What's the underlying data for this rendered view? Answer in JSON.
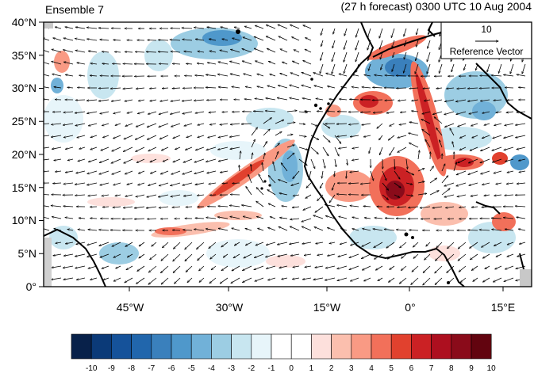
{
  "header": {
    "left_title": "Ensemble 7",
    "right_title": "(27 h forecast) 0300 UTC 10 Aug 2004"
  },
  "map": {
    "lat_ticks": [
      "40°N",
      "35°N",
      "30°N",
      "25°N",
      "20°N",
      "15°N",
      "10°N",
      "5°N",
      "0°"
    ],
    "lon_ticks": [
      "45°W",
      "30°W",
      "15°W",
      "0°",
      "15°E"
    ],
    "reference_vector": {
      "value": "10",
      "label": "Reference Vector"
    }
  },
  "colorbar": {
    "labels": [
      "-10",
      "-9",
      "-8",
      "-7",
      "-6",
      "-5",
      "-4",
      "-3",
      "-2",
      "-1",
      "0",
      "1",
      "2",
      "3",
      "4",
      "5",
      "6",
      "7",
      "8",
      "9",
      "10"
    ],
    "colors": [
      "#08214a",
      "#0b3a78",
      "#15529a",
      "#2166ac",
      "#3a80bc",
      "#4f98cb",
      "#71b1d8",
      "#9ccde3",
      "#c8e6f0",
      "#e7f5fa",
      "#ffffff",
      "#ffffff",
      "#fde0dc",
      "#fbbfae",
      "#f99a84",
      "#f2705a",
      "#e1412e",
      "#cb2124",
      "#ad0f1f",
      "#8a0b1a",
      "#62040f"
    ]
  }
}
